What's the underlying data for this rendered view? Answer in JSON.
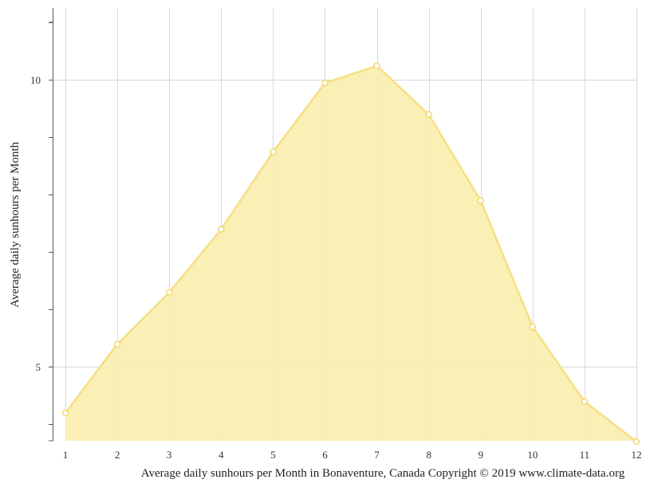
{
  "chart_data": {
    "type": "area",
    "x": [
      1,
      2,
      3,
      4,
      5,
      6,
      7,
      8,
      9,
      10,
      11,
      12
    ],
    "values": [
      4.2,
      5.4,
      6.3,
      7.4,
      8.75,
      9.95,
      10.25,
      9.4,
      7.9,
      5.7,
      4.4,
      3.7
    ],
    "ylabel": "Average daily sunhours per Month",
    "caption": "Average daily sunhours per Month in Bonaventure, Canada Copyright © 2019 www.climate-data.org",
    "xlim": [
      1,
      12
    ],
    "ylim": [
      3.7,
      11.25
    ],
    "y_ticks": [
      5,
      10
    ],
    "y_tick_labels": [
      "5",
      "10"
    ],
    "y_minor_ticks": [
      4,
      5,
      6,
      7,
      8,
      9,
      10,
      11
    ],
    "x_tick_labels": [
      "1",
      "2",
      "3",
      "4",
      "5",
      "6",
      "7",
      "8",
      "9",
      "10",
      "11",
      "12"
    ],
    "grid": true,
    "colors": {
      "fill": "#faeeb0",
      "line": "#f6df83",
      "marker": "#f3d35e",
      "grid": "#d8d8d8",
      "axis": "#555555"
    }
  }
}
